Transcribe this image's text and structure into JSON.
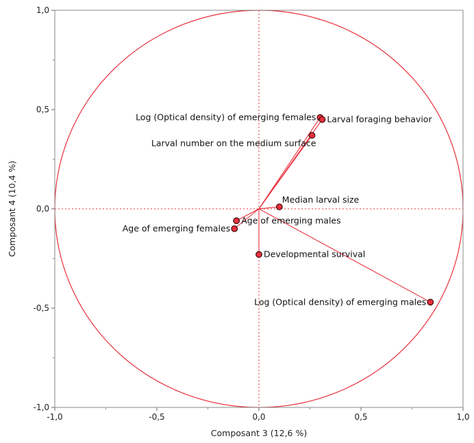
{
  "chart_data": {
    "type": "scatter",
    "subtype": "correlation-circle",
    "xlabel": "Composant 3  (12,6 %)",
    "ylabel": "Composant 4  (10,4 %)",
    "xlim": [
      -1.0,
      1.0
    ],
    "ylim": [
      -1.0,
      1.0
    ],
    "xticks": [
      "-1,0",
      "-0,5",
      "0,0",
      "0,5",
      "1,0"
    ],
    "yticks": [
      "1,0",
      "0,5",
      "0,0",
      "-0,5",
      "-1,0"
    ],
    "grid": false,
    "color": "#e8303d",
    "points": [
      {
        "label": "Log (Optical density) of emerging females",
        "x": 0.3,
        "y": 0.46,
        "label_side": "left"
      },
      {
        "label": "Larval foraging behavior",
        "x": 0.31,
        "y": 0.45,
        "label_side": "right"
      },
      {
        "label": "Larval number on the medium surface",
        "x": 0.26,
        "y": 0.37,
        "label_side": "left-below"
      },
      {
        "label": "Median larval size",
        "x": 0.1,
        "y": 0.01,
        "label_side": "right-above"
      },
      {
        "label": "Age of emerging females",
        "x": -0.12,
        "y": -0.1,
        "label_side": "left"
      },
      {
        "label": "Age of emerging males",
        "x": -0.11,
        "y": -0.06,
        "label_side": "right"
      },
      {
        "label": "Developmental survival",
        "x": 0.0,
        "y": -0.23,
        "label_side": "right"
      },
      {
        "label": "Log (Optical density) of emerging males",
        "x": 0.84,
        "y": -0.47,
        "label_side": "left"
      }
    ]
  }
}
